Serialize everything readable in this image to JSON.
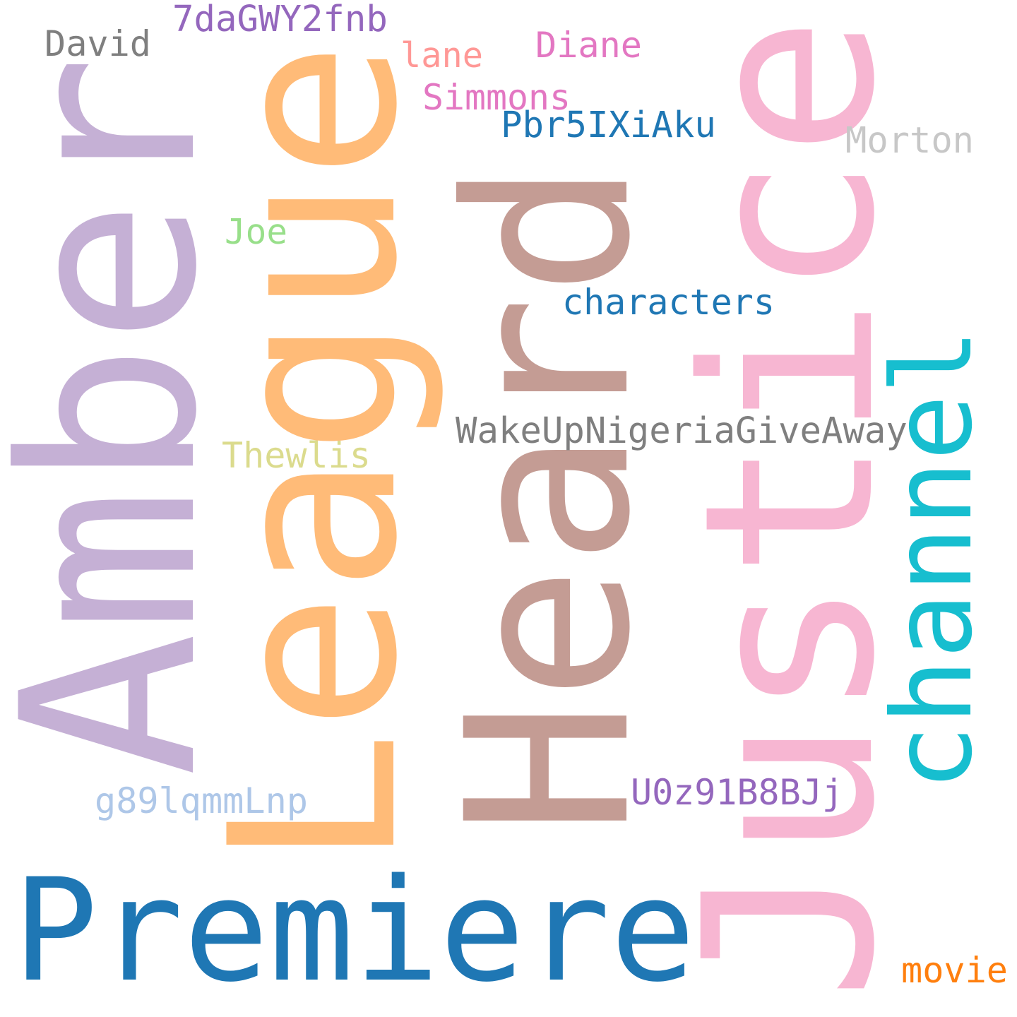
{
  "words": {
    "amber": {
      "text": "Amber",
      "color": "#c5b0d5",
      "orientation": "vertical"
    },
    "league": {
      "text": "League",
      "color": "#ffbb78",
      "orientation": "vertical"
    },
    "heard": {
      "text": "Heard",
      "color": "#c49c94",
      "orientation": "vertical"
    },
    "justice": {
      "text": "Justice",
      "color": "#f7b6d2",
      "orientation": "vertical"
    },
    "channel": {
      "text": "channel",
      "color": "#17becf",
      "orientation": "vertical"
    },
    "premiere": {
      "text": "Premiere",
      "color": "#1f77b4",
      "orientation": "horizontal"
    },
    "wakeup": {
      "text": "WakeUpNigeriaGiveAway",
      "color": "#7f7f7f",
      "orientation": "horizontal"
    },
    "characters": {
      "text": "characters",
      "color": "#1f77b4",
      "orientation": "horizontal"
    },
    "u0z": {
      "text": "U0z91B8BJj",
      "color": "#9467bd",
      "orientation": "horizontal"
    },
    "g89": {
      "text": "g89lqmmLnp",
      "color": "#aec7e8",
      "orientation": "horizontal"
    },
    "sevenda": {
      "text": "7daGWY2fnb",
      "color": "#9467bd",
      "orientation": "horizontal"
    },
    "pbr": {
      "text": "Pbr5IXiAku",
      "color": "#1f77b4",
      "orientation": "horizontal"
    },
    "simmons": {
      "text": "Simmons",
      "color": "#e377c2",
      "orientation": "horizontal"
    },
    "morton": {
      "text": "Morton",
      "color": "#c7c7c7",
      "orientation": "horizontal"
    },
    "thewlis": {
      "text": "Thewlis",
      "color": "#dbdb8d",
      "orientation": "horizontal"
    },
    "diane": {
      "text": "Diane",
      "color": "#e377c2",
      "orientation": "horizontal"
    },
    "david": {
      "text": "David",
      "color": "#7f7f7f",
      "orientation": "horizontal"
    },
    "lane": {
      "text": "lane",
      "color": "#ff9896",
      "orientation": "horizontal"
    },
    "joe": {
      "text": "Joe",
      "color": "#98df8a",
      "orientation": "horizontal"
    },
    "movie": {
      "text": "movie",
      "color": "#ff7f0e",
      "orientation": "horizontal"
    }
  }
}
